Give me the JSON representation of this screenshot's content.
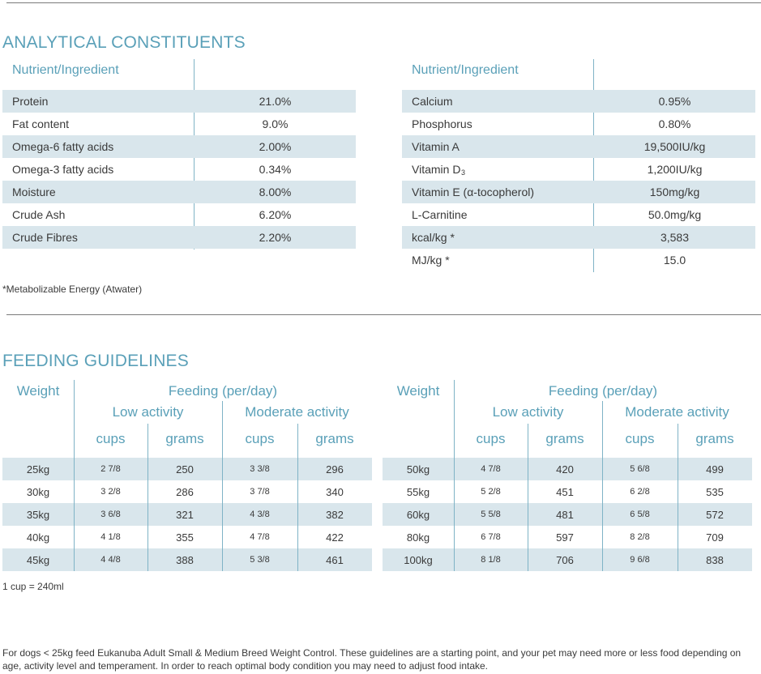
{
  "analytical": {
    "title": "ANALYTICAL CONSTITUENTS",
    "left": {
      "header": "Nutrient/Ingredient",
      "rows": [
        {
          "name": "Protein",
          "value": "21.0%"
        },
        {
          "name": "Fat content",
          "value": "9.0%"
        },
        {
          "name": "Omega-6 fatty acids",
          "value": "2.00%"
        },
        {
          "name": "Omega-3 fatty acids",
          "value": "0.34%"
        },
        {
          "name": "Moisture",
          "value": "8.00%"
        },
        {
          "name": "Crude Ash",
          "value": "6.20%"
        },
        {
          "name": "Crude Fibres",
          "value": "2.20%"
        }
      ]
    },
    "right": {
      "header": "Nutrient/Ingredient",
      "rows": [
        {
          "name": "Calcium",
          "value": "0.95%"
        },
        {
          "name": "Phosphorus",
          "value": "0.80%"
        },
        {
          "name": "Vitamin A",
          "value": "19,500IU/kg"
        },
        {
          "name": "Vitamin D",
          "sub": "3",
          "value": "1,200IU/kg"
        },
        {
          "name": "Vitamin E (α-tocopherol)",
          "value": "150mg/kg"
        },
        {
          "name": "L-Carnitine",
          "value": "50.0mg/kg"
        },
        {
          "name": "kcal/kg *",
          "value": "3,583"
        },
        {
          "name": "MJ/kg *",
          "value": "15.0"
        }
      ]
    },
    "footnote": "*Metabolizable Energy (Atwater)"
  },
  "feeding": {
    "title": "FEEDING GUIDELINES",
    "headers": {
      "weight": "Weight",
      "feeding": "Feeding (per/day)",
      "low": "Low activity",
      "moderate": "Moderate activity",
      "cups": "cups",
      "grams": "grams"
    },
    "left_rows": [
      {
        "weight": "25kg",
        "low_cups": "2 7/8",
        "low_grams": "250",
        "mod_cups": "3 3/8",
        "mod_grams": "296"
      },
      {
        "weight": "30kg",
        "low_cups": "3 2/8",
        "low_grams": "286",
        "mod_cups": "3 7/8",
        "mod_grams": "340"
      },
      {
        "weight": "35kg",
        "low_cups": "3 6/8",
        "low_grams": "321",
        "mod_cups": "4 3/8",
        "mod_grams": "382"
      },
      {
        "weight": "40kg",
        "low_cups": "4 1/8",
        "low_grams": "355",
        "mod_cups": "4 7/8",
        "mod_grams": "422"
      },
      {
        "weight": "45kg",
        "low_cups": "4 4/8",
        "low_grams": "388",
        "mod_cups": "5 3/8",
        "mod_grams": "461"
      }
    ],
    "right_rows": [
      {
        "weight": "50kg",
        "low_cups": "4 7/8",
        "low_grams": "420",
        "mod_cups": "5 6/8",
        "mod_grams": "499"
      },
      {
        "weight": "55kg",
        "low_cups": "5 2/8",
        "low_grams": "451",
        "mod_cups": "6 2/8",
        "mod_grams": "535"
      },
      {
        "weight": "60kg",
        "low_cups": "5 5/8",
        "low_grams": "481",
        "mod_cups": "6 5/8",
        "mod_grams": "572"
      },
      {
        "weight": "80kg",
        "low_cups": "6 7/8",
        "low_grams": "597",
        "mod_cups": "8 2/8",
        "mod_grams": "709"
      },
      {
        "weight": "100kg",
        "low_cups": "8 1/8",
        "low_grams": "706",
        "mod_cups": "9 6/8",
        "mod_grams": "838"
      }
    ],
    "cup_note": "1 cup = 240ml",
    "footer": "For dogs < 25kg feed Eukanuba Adult Small & Medium Breed Weight Control. These guidelines are a starting point, and your pet may need more or less food depending on age, activity level and temperament. In order to reach optimal body condition you may need to adjust food intake."
  },
  "colors": {
    "accent": "#5aa0b8",
    "row_shade": "#d9e6ec",
    "text": "#3a3a3a"
  }
}
